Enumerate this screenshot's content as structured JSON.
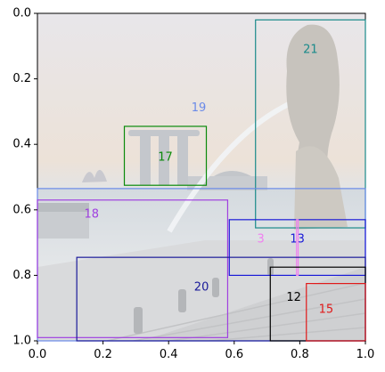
{
  "chart_data": {
    "type": "annotated-image",
    "background": "photo: Singapore waterfront with Merlion statue and Marina Bay Sands, washed out",
    "xlim": [
      0.0,
      1.0
    ],
    "ylim": [
      1.0,
      0.0
    ],
    "y_inverted": true,
    "x_ticks": [
      "0.0",
      "0.2",
      "0.4",
      "0.6",
      "0.8",
      "1.0"
    ],
    "y_ticks": [
      "0.0",
      "0.2",
      "0.4",
      "0.6",
      "0.8",
      "1.0"
    ],
    "boxes": [
      {
        "label": "21",
        "color": "#1a8a8a",
        "x0": 0.665,
        "y0": 0.02,
        "x1": 1.0,
        "y1": 0.655
      },
      {
        "label": "19",
        "color": "#6a8ae8",
        "x0": 0.0,
        "y0": 0.535,
        "x1": 1.0,
        "y1": 1.0
      },
      {
        "label": "17",
        "color": "#0a8a0a",
        "x0": 0.265,
        "y0": 0.345,
        "x1": 0.515,
        "y1": 0.525
      },
      {
        "label": "18",
        "color": "#a040e0",
        "x0": 0.0,
        "y0": 0.57,
        "x1": 0.58,
        "y1": 0.99
      },
      {
        "label": "13",
        "color": "#1a1ad8",
        "x0": 0.585,
        "y0": 0.63,
        "x1": 1.0,
        "y1": 0.8
      },
      {
        "label": "3",
        "color": "#f080f0",
        "x0": 0.79,
        "y0": 0.63,
        "x1": 0.795,
        "y1": 0.8
      },
      {
        "label": "20",
        "color": "#1a1a9a",
        "x0": 0.12,
        "y0": 0.745,
        "x1": 1.0,
        "y1": 1.0
      },
      {
        "label": "12",
        "color": "#000000",
        "x0": 0.71,
        "y0": 0.775,
        "x1": 1.0,
        "y1": 1.0
      },
      {
        "label": "15",
        "color": "#e01a1a",
        "x0": 0.82,
        "y0": 0.825,
        "x1": 1.0,
        "y1": 1.0
      }
    ]
  }
}
